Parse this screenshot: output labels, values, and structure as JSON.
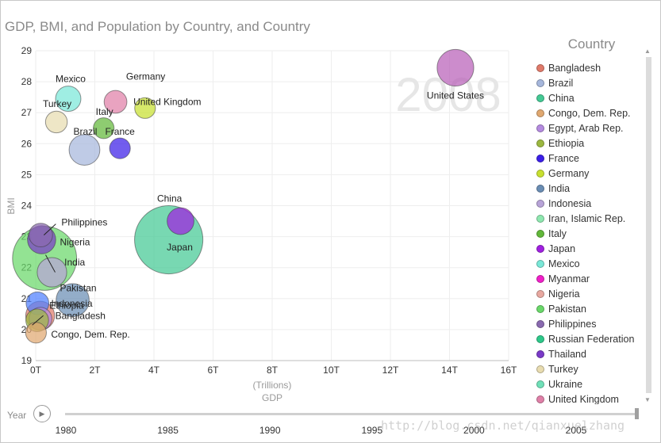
{
  "title": "GDP, BMI, and Population by Country, and Country",
  "legend": {
    "title": "Country",
    "items": [
      {
        "label": "Bangladesh",
        "color": "#e07a6a"
      },
      {
        "label": "Brazil",
        "color": "#a6b7dc"
      },
      {
        "label": "China",
        "color": "#44c994"
      },
      {
        "label": "Congo, Dem. Rep.",
        "color": "#e0a870"
      },
      {
        "label": "Egypt, Arab Rep.",
        "color": "#b58be0"
      },
      {
        "label": "Ethiopia",
        "color": "#9cb840"
      },
      {
        "label": "France",
        "color": "#3b1fe8"
      },
      {
        "label": "Germany",
        "color": "#c8e030"
      },
      {
        "label": "India",
        "color": "#6a8db4"
      },
      {
        "label": "Indonesia",
        "color": "#b8a4d8"
      },
      {
        "label": "Iran, Islamic Rep.",
        "color": "#8fe8b0"
      },
      {
        "label": "Italy",
        "color": "#62b83a"
      },
      {
        "label": "Japan",
        "color": "#a020e0"
      },
      {
        "label": "Mexico",
        "color": "#7ae8d8"
      },
      {
        "label": "Myanmar",
        "color": "#f020c8"
      },
      {
        "label": "Nigeria",
        "color": "#e8a8a0"
      },
      {
        "label": "Pakistan",
        "color": "#6ad86a"
      },
      {
        "label": "Philippines",
        "color": "#8a6ab0"
      },
      {
        "label": "Russian Federation",
        "color": "#2ec88a"
      },
      {
        "label": "Thailand",
        "color": "#7a3ac8"
      },
      {
        "label": "Turkey",
        "color": "#e8dcb0"
      },
      {
        "label": "Ukraine",
        "color": "#70e0b8"
      },
      {
        "label": "United Kingdom",
        "color": "#e080a8"
      },
      {
        "label": "United States",
        "color": "#b860b8"
      }
    ]
  },
  "play_axis": {
    "label": "Year",
    "ticks": [
      "1980",
      "1985",
      "1990",
      "1995",
      "2000",
      "2005"
    ],
    "current_year": "2008"
  },
  "watermark": "http://blog.csdn.net/qianxuelzhang",
  "chart_data": {
    "type": "scatter",
    "bubble": true,
    "title": "GDP, BMI, and Population by Country, and Country",
    "xlabel": "GDP",
    "xunit": "(Trillions)",
    "ylabel": "BMI",
    "xlim": [
      0,
      16
    ],
    "ylim": [
      19,
      29
    ],
    "x_ticks": [
      "0T",
      "2T",
      "4T",
      "6T",
      "8T",
      "10T",
      "12T",
      "14T",
      "16T"
    ],
    "y_ticks": [
      "19",
      "20",
      "21",
      "22",
      "23",
      "24",
      "25",
      "26",
      "27",
      "28",
      "29"
    ],
    "grid": true,
    "legend_position": "right",
    "overlay_year": "2008",
    "points": [
      {
        "country": "United States",
        "label": "United States",
        "x": 14.2,
        "y": 28.45,
        "size": 0.3,
        "color": "#b860b8",
        "label_dx": 0,
        "label_dy": 35,
        "anchor": "middle"
      },
      {
        "country": "Mexico",
        "label": "Mexico",
        "x": 1.1,
        "y": 27.45,
        "size": 0.11,
        "color": "#7ae8d8",
        "label_dx": 3,
        "label_dy": -25,
        "anchor": "middle"
      },
      {
        "country": "Germany",
        "label": "Germany",
        "x": 2.7,
        "y": 27.35,
        "size": 0.08,
        "color": "#e080a8",
        "label_dx": 38,
        "label_dy": -32,
        "anchor": "middle"
      },
      {
        "country": "United Kingdom",
        "label": "United Kingdom",
        "x": 3.7,
        "y": 27.15,
        "size": 0.06,
        "color": "#c8e030",
        "label_dx": 28,
        "label_dy": -8,
        "anchor": "middle"
      },
      {
        "country": "Turkey",
        "label": "Turkey",
        "x": 0.7,
        "y": 26.7,
        "size": 0.07,
        "color": "#e8dcb0",
        "label_dx": 1,
        "label_dy": -23,
        "anchor": "middle"
      },
      {
        "country": "Italy",
        "label": "Italy",
        "x": 2.3,
        "y": 26.5,
        "size": 0.06,
        "color": "#62b83a",
        "label_dx": 1,
        "label_dy": -21,
        "anchor": "middle"
      },
      {
        "country": "Brazil",
        "label": "Brazil",
        "x": 1.65,
        "y": 25.8,
        "size": 0.19,
        "color": "#a6b7dc",
        "label_dx": 1,
        "label_dy": -23,
        "anchor": "middle"
      },
      {
        "country": "France",
        "label": "France",
        "x": 2.85,
        "y": 25.85,
        "size": 0.06,
        "color": "#3b1fe8",
        "label_dx": 0,
        "label_dy": -21,
        "anchor": "middle"
      },
      {
        "country": "China",
        "label": "China",
        "x": 4.5,
        "y": 22.9,
        "size": 1.33,
        "color": "#44c994",
        "label_dx": 1,
        "label_dy": -52,
        "anchor": "middle"
      },
      {
        "country": "Japan",
        "label": "Japan",
        "x": 4.9,
        "y": 23.5,
        "size": 0.13,
        "color": "#a020e0",
        "label_dx": -1,
        "label_dy": 33,
        "anchor": "middle"
      },
      {
        "country": "Philippines",
        "label": "Philippines",
        "x": 0.17,
        "y": 23.05,
        "size": 0.09,
        "color": "#8a6ab0",
        "label_dx": 26,
        "label_dy": -16,
        "anchor": "start"
      },
      {
        "country": "Nigeria",
        "label": "Nigeria",
        "x": 0.2,
        "y": 22.9,
        "size": 0.15,
        "color": "#7a3ac8",
        "label_dx": 23,
        "label_dy": 3,
        "anchor": "start"
      },
      {
        "country": "India",
        "label": "India",
        "x": 0.3,
        "y": 22.3,
        "size": 1.15,
        "color": "#6ad86a",
        "label_dx": 25,
        "label_dy": 5,
        "anchor": "start"
      },
      {
        "country": "Pakistan",
        "label": "Pakistan",
        "x": 0.55,
        "y": 21.85,
        "size": 0.17,
        "color": "#b8a4d8",
        "label_dx": 10,
        "label_dy": 20,
        "anchor": "start"
      },
      {
        "country": "Indonesia",
        "label": "Indonesia",
        "x": 1.25,
        "y": 20.95,
        "size": 0.23,
        "color": "#6a8db4",
        "label_dx": -1,
        "label_dy": 4,
        "anchor": "middle"
      },
      {
        "country": "Ethiopia",
        "label": "Ethiopia",
        "x": 0.06,
        "y": 20.85,
        "size": 0.08,
        "color": "#4f80ff",
        "label_dx": 15,
        "label_dy": 3,
        "anchor": "start"
      },
      {
        "country": "Bangladesh",
        "label": "Bangladesh",
        "x": 0.15,
        "y": 20.45,
        "size": 0.16,
        "color": "#e07a6a",
        "label_dx": 19,
        "label_dy": 0,
        "anchor": "start"
      },
      {
        "country": "Egypt, Arab Rep.",
        "label": "",
        "x": 0.16,
        "y": 20.35,
        "size": 0.08,
        "color": "#b58be0",
        "label_dx": 0,
        "label_dy": 0,
        "anchor": "start"
      },
      {
        "country": "Congo, Dem. Rep.",
        "label": "Congo, Dem. Rep.",
        "x": 0.01,
        "y": 19.9,
        "size": 0.06,
        "color": "#e0a870",
        "label_dx": 19,
        "label_dy": 2,
        "anchor": "start"
      },
      {
        "country": "Ethiopia (2)",
        "label": "",
        "x": 0.05,
        "y": 20.3,
        "size": 0.08,
        "color": "#9cb840",
        "label_dx": 0,
        "label_dy": 0,
        "anchor": "start"
      }
    ]
  }
}
